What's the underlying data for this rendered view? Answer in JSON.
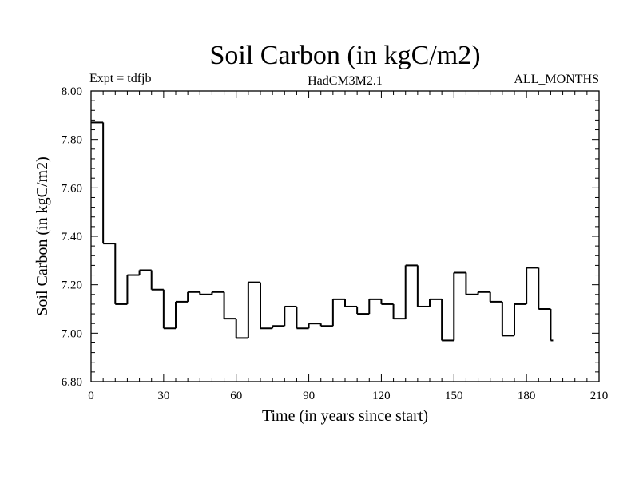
{
  "chart_data": {
    "type": "line",
    "step": true,
    "title": "Soil Carbon (in kgC/m2)",
    "subtitle_left": "Expt = tdfjb",
    "subtitle_center": "HadCM3M2.1",
    "subtitle_right": "ALL_MONTHS",
    "xlabel": "Time (in years since start)",
    "ylabel": "Soil Carbon (in kgC/m2)",
    "xlim": [
      0,
      210
    ],
    "ylim": [
      6.8,
      8.0
    ],
    "xticks": [
      0,
      30,
      60,
      90,
      120,
      150,
      180,
      210
    ],
    "xtick_labels": [
      "0",
      "30",
      "60",
      "90",
      "120",
      "150",
      "180",
      "210"
    ],
    "yticks": [
      6.8,
      7.0,
      7.2,
      7.4,
      7.6,
      7.8,
      8.0
    ],
    "ytick_labels": [
      "6.80",
      "7.00",
      "7.20",
      "7.40",
      "7.60",
      "7.80",
      "8.00"
    ],
    "grid": false,
    "line_color": "#000000",
    "x_end": 191,
    "x": [
      0,
      5,
      10,
      15,
      20,
      25,
      30,
      35,
      40,
      45,
      50,
      55,
      60,
      65,
      70,
      75,
      80,
      85,
      90,
      95,
      100,
      105,
      110,
      115,
      120,
      125,
      130,
      135,
      140,
      145,
      150,
      155,
      160,
      165,
      170,
      175,
      180,
      185,
      190
    ],
    "values": [
      7.87,
      7.37,
      7.12,
      7.24,
      7.26,
      7.18,
      7.02,
      7.13,
      7.17,
      7.16,
      7.17,
      7.06,
      6.98,
      7.21,
      7.02,
      7.03,
      7.11,
      7.02,
      7.04,
      7.03,
      7.14,
      7.11,
      7.08,
      7.14,
      7.12,
      7.06,
      7.28,
      7.11,
      7.14,
      6.97,
      7.25,
      7.16,
      7.17,
      7.13,
      6.99,
      7.12,
      7.27,
      7.1,
      6.97
    ]
  }
}
